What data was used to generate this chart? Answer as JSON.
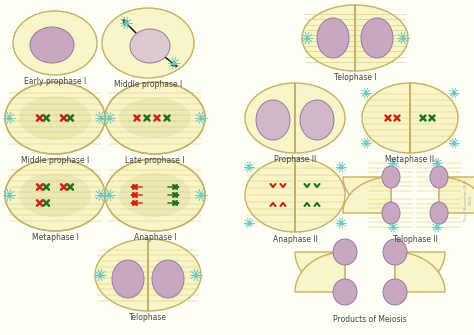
{
  "bg_color": "#fefef5",
  "cell_fill": "#f8f5c8",
  "cell_edge": "#c8b060",
  "nucleus_fill": "#c8a8c0",
  "nucleus_edge": "#9878a0",
  "spindle_color": "#d4c060",
  "chromosome_red": "#cc2010",
  "chromosome_green": "#207020",
  "centriole_color": "#70c8c0",
  "title_fontsize": 5.5,
  "labels": {
    "early_prophase1": "Early prophase I",
    "middle_prophase1_top": "Middle prophase I",
    "middle_prophase1": "Middle prophase I",
    "late_prophase1": "Late prophase I",
    "metaphase1": "Metaphase I",
    "anaphase1": "Anaphase I",
    "telophase": "Telophase",
    "telophase1": "Telophase I",
    "prophase2": "Prophase II",
    "metaphase2": "Metaphase II",
    "anaphase2": "Anaphase II",
    "telophase2": "Telophase II",
    "products": "Products of Meiosis"
  }
}
